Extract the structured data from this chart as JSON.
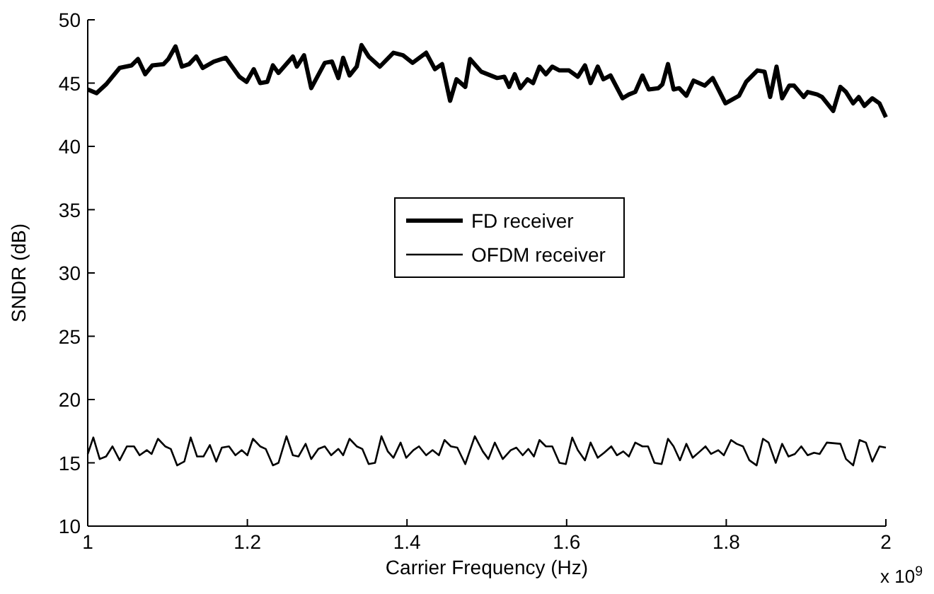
{
  "chart_data": {
    "type": "line",
    "xlabel": "Carrier Frequency (Hz)",
    "ylabel": "SNDR (dB)",
    "xlim": [
      1,
      2
    ],
    "xticks": [
      1,
      1.2,
      1.4,
      1.6,
      1.8,
      2
    ],
    "ylim": [
      10,
      50
    ],
    "yticks": [
      10,
      15,
      20,
      25,
      30,
      35,
      40,
      45,
      50
    ],
    "grid": false,
    "legend": "center",
    "marker": "none",
    "line_style": "solid",
    "annotations": [
      "x 10$^{9}$"
    ],
    "series": [
      {
        "name": "FD receiver",
        "color": "#000000",
        "x": [
          1.0,
          1.011,
          1.023,
          1.04,
          1.055,
          1.063,
          1.072,
          1.081,
          1.095,
          1.101,
          1.11,
          1.118,
          1.127,
          1.136,
          1.144,
          1.158,
          1.173,
          1.19,
          1.199,
          1.208,
          1.216,
          1.225,
          1.232,
          1.239,
          1.257,
          1.262,
          1.271,
          1.28,
          1.297,
          1.306,
          1.314,
          1.32,
          1.328,
          1.337,
          1.343,
          1.352,
          1.366,
          1.383,
          1.395,
          1.407,
          1.424,
          1.435,
          1.444,
          1.454,
          1.462,
          1.473,
          1.479,
          1.493,
          1.513,
          1.522,
          1.528,
          1.535,
          1.542,
          1.551,
          1.558,
          1.566,
          1.574,
          1.582,
          1.591,
          1.603,
          1.614,
          1.623,
          1.63,
          1.639,
          1.646,
          1.655,
          1.67,
          1.678,
          1.686,
          1.695,
          1.703,
          1.715,
          1.72,
          1.727,
          1.734,
          1.741,
          1.75,
          1.759,
          1.773,
          1.783,
          1.799,
          1.816,
          1.825,
          1.839,
          1.848,
          1.855,
          1.863,
          1.87,
          1.879,
          1.885,
          1.897,
          1.902,
          1.914,
          1.92,
          1.934,
          1.943,
          1.95,
          1.959,
          1.966,
          1.973,
          1.983,
          1.992,
          2.0
        ],
        "values": [
          44.5,
          44.2,
          44.9,
          46.2,
          46.4,
          46.9,
          45.7,
          46.4,
          46.5,
          46.9,
          47.9,
          46.3,
          46.5,
          47.1,
          46.2,
          46.7,
          47.0,
          45.5,
          45.1,
          46.1,
          45.0,
          45.1,
          46.4,
          45.8,
          47.1,
          46.3,
          47.2,
          44.6,
          46.6,
          46.7,
          45.4,
          47.0,
          45.6,
          46.3,
          48.0,
          47.1,
          46.3,
          47.4,
          47.2,
          46.6,
          47.4,
          46.1,
          46.5,
          43.6,
          45.3,
          44.7,
          46.9,
          45.9,
          45.4,
          45.5,
          44.7,
          45.7,
          44.6,
          45.3,
          45.0,
          46.3,
          45.7,
          46.3,
          46.0,
          46.0,
          45.5,
          46.4,
          45.0,
          46.3,
          45.3,
          45.6,
          43.8,
          44.1,
          44.3,
          45.6,
          44.5,
          44.6,
          44.9,
          46.5,
          44.5,
          44.6,
          44.0,
          45.2,
          44.8,
          45.4,
          43.4,
          44.0,
          45.1,
          46.0,
          45.9,
          43.9,
          46.3,
          43.8,
          44.8,
          44.8,
          43.9,
          44.3,
          44.1,
          43.9,
          42.8,
          44.7,
          44.3,
          43.4,
          43.9,
          43.2,
          43.8,
          43.4,
          42.3
        ]
      },
      {
        "name": "OFDM receiver",
        "color": "#000000",
        "x": [
          1.0,
          1.007,
          1.015,
          1.023,
          1.031,
          1.04,
          1.049,
          1.058,
          1.065,
          1.074,
          1.08,
          1.088,
          1.097,
          1.104,
          1.112,
          1.121,
          1.129,
          1.137,
          1.145,
          1.153,
          1.161,
          1.168,
          1.177,
          1.185,
          1.193,
          1.2,
          1.207,
          1.216,
          1.223,
          1.232,
          1.239,
          1.249,
          1.257,
          1.264,
          1.273,
          1.28,
          1.289,
          1.297,
          1.305,
          1.314,
          1.32,
          1.328,
          1.337,
          1.344,
          1.352,
          1.36,
          1.368,
          1.376,
          1.383,
          1.392,
          1.399,
          1.408,
          1.415,
          1.424,
          1.432,
          1.44,
          1.447,
          1.455,
          1.463,
          1.473,
          1.485,
          1.495,
          1.502,
          1.51,
          1.52,
          1.53,
          1.537,
          1.545,
          1.552,
          1.559,
          1.566,
          1.574,
          1.582,
          1.591,
          1.599,
          1.607,
          1.614,
          1.623,
          1.63,
          1.639,
          1.647,
          1.656,
          1.663,
          1.671,
          1.678,
          1.686,
          1.695,
          1.702,
          1.71,
          1.719,
          1.727,
          1.734,
          1.742,
          1.75,
          1.758,
          1.767,
          1.774,
          1.781,
          1.79,
          1.797,
          1.806,
          1.813,
          1.821,
          1.829,
          1.838,
          1.846,
          1.853,
          1.862,
          1.87,
          1.878,
          1.886,
          1.894,
          1.902,
          1.91,
          1.917,
          1.926,
          1.943,
          1.95,
          1.959,
          1.967,
          1.975,
          1.983,
          1.992,
          2.0
        ],
        "values": [
          15.7,
          17.0,
          15.3,
          15.5,
          16.3,
          15.2,
          16.3,
          16.3,
          15.6,
          16.0,
          15.7,
          16.9,
          16.3,
          16.1,
          14.8,
          15.1,
          17.0,
          15.5,
          15.5,
          16.4,
          15.1,
          16.2,
          16.3,
          15.6,
          16.0,
          15.6,
          16.9,
          16.3,
          16.1,
          14.8,
          15.0,
          17.1,
          15.6,
          15.5,
          16.5,
          15.3,
          16.1,
          16.3,
          15.6,
          16.1,
          15.6,
          16.9,
          16.3,
          16.1,
          14.9,
          15.0,
          17.1,
          15.9,
          15.4,
          16.6,
          15.4,
          16.0,
          16.3,
          15.6,
          16.0,
          15.6,
          16.8,
          16.3,
          16.2,
          14.9,
          17.1,
          15.9,
          15.3,
          16.6,
          15.3,
          16.0,
          16.2,
          15.6,
          16.1,
          15.5,
          16.8,
          16.3,
          16.3,
          15.0,
          14.9,
          17.0,
          16.0,
          15.2,
          16.6,
          15.4,
          15.8,
          16.3,
          15.6,
          15.9,
          15.5,
          16.6,
          16.3,
          16.3,
          15.0,
          14.9,
          16.9,
          16.3,
          15.2,
          16.5,
          15.4,
          15.9,
          16.3,
          15.7,
          16.0,
          15.6,
          16.8,
          16.5,
          16.3,
          15.2,
          14.8,
          16.9,
          16.6,
          15.0,
          16.5,
          15.5,
          15.7,
          16.3,
          15.6,
          15.8,
          15.7,
          16.6,
          16.5,
          15.3,
          14.8,
          16.8,
          16.6,
          15.1,
          16.3,
          16.2
        ]
      }
    ]
  }
}
